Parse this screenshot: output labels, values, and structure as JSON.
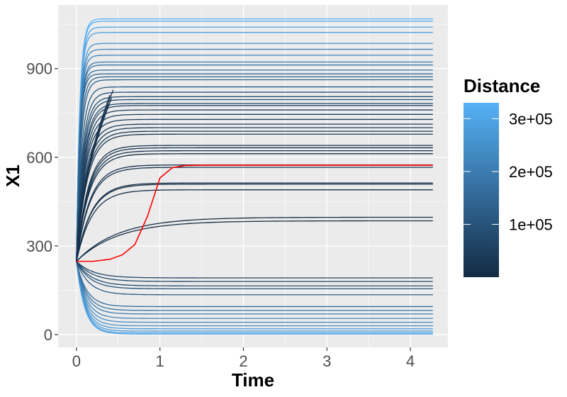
{
  "chart_data": {
    "type": "line",
    "title": "",
    "xlabel": "Time",
    "ylabel": "X1",
    "xlim": [
      -0.22,
      4.45
    ],
    "ylim": [
      -43,
      1115
    ],
    "xticks": [
      0,
      1,
      2,
      3,
      4
    ],
    "xtick_labels": [
      "0",
      "1",
      "2",
      "3",
      "4"
    ],
    "yticks": [
      0,
      300,
      600,
      900
    ],
    "ytick_labels": [
      "0",
      "300",
      "600",
      "900"
    ],
    "grid": true,
    "panel_background": "#ebebeb",
    "legend": {
      "title": "Distance",
      "position": "right",
      "type": "colorbar",
      "range": [
        0,
        330000
      ],
      "breaks": [
        100000,
        200000,
        300000
      ],
      "break_labels": [
        "1e+05",
        "2e+05",
        "3e+05"
      ],
      "low_color": "#132b43",
      "high_color": "#56b1f7"
    },
    "highlight_color": "#ff0000",
    "start": {
      "time": 0,
      "x1": 248
    },
    "series": [
      {
        "final": 1068,
        "distance": 330000
      },
      {
        "final": 1060,
        "distance": 325000
      },
      {
        "final": 1040,
        "distance": 305000
      },
      {
        "final": 1022,
        "distance": 290000
      },
      {
        "final": 985,
        "distance": 250000
      },
      {
        "final": 965,
        "distance": 230000
      },
      {
        "final": 945,
        "distance": 210000
      },
      {
        "final": 922,
        "distance": 190000
      },
      {
        "final": 912,
        "distance": 180000
      },
      {
        "final": 895,
        "distance": 165000
      },
      {
        "final": 882,
        "distance": 150000
      },
      {
        "final": 872,
        "distance": 140000
      },
      {
        "final": 862,
        "distance": 130000
      },
      {
        "final": 838,
        "distance": 115000
      },
      {
        "final": 820,
        "distance": 100000
      },
      {
        "final": 805,
        "distance": 90000
      },
      {
        "final": 795,
        "distance": 82000
      },
      {
        "final": 782,
        "distance": 72000
      },
      {
        "final": 775,
        "distance": 65000
      },
      {
        "final": 760,
        "distance": 58000
      },
      {
        "final": 745,
        "distance": 50000
      },
      {
        "final": 728,
        "distance": 45000
      },
      {
        "final": 712,
        "distance": 40000
      },
      {
        "final": 700,
        "distance": 35000
      },
      {
        "final": 688,
        "distance": 30000
      },
      {
        "final": 678,
        "distance": 26000
      },
      {
        "final": 640,
        "distance": 20000
      },
      {
        "final": 632,
        "distance": 18000
      },
      {
        "final": 622,
        "distance": 16000
      },
      {
        "final": 612,
        "distance": 15000
      },
      {
        "final": 574,
        "distance": 12000
      },
      {
        "final": 566,
        "distance": 11000
      },
      {
        "final": 513,
        "distance": 8000
      },
      {
        "final": 509,
        "distance": 7500
      },
      {
        "final": 490,
        "distance": 7000
      },
      {
        "final": 397,
        "distance": 5000,
        "slow": true
      },
      {
        "final": 385,
        "distance": 4500,
        "slow": true
      },
      {
        "final": 192,
        "distance": 60000
      },
      {
        "final": 180,
        "distance": 70000
      },
      {
        "final": 165,
        "distance": 85000
      },
      {
        "final": 155,
        "distance": 100000
      },
      {
        "final": 135,
        "distance": 120000
      },
      {
        "final": 95,
        "distance": 160000
      },
      {
        "final": 82,
        "distance": 180000
      },
      {
        "final": 70,
        "distance": 200000
      },
      {
        "final": 55,
        "distance": 220000
      },
      {
        "final": 42,
        "distance": 240000
      },
      {
        "final": 30,
        "distance": 255000
      },
      {
        "final": 20,
        "distance": 270000
      },
      {
        "final": 12,
        "distance": 280000
      },
      {
        "final": 6,
        "distance": 290000
      },
      {
        "final": 2,
        "distance": 300000
      }
    ],
    "short_series": [
      {
        "end_time": 0.44,
        "end_value": 828,
        "distance": 20000
      },
      {
        "end_time": 0.4,
        "end_value": 810,
        "distance": 22000
      },
      {
        "end_time": 0.38,
        "end_value": 780,
        "distance": 25000
      },
      {
        "end_time": 0.42,
        "end_value": 800,
        "distance": 18000
      }
    ],
    "highlight": {
      "x": [
        0,
        0.2,
        0.4,
        0.55,
        0.7,
        0.85,
        1.0,
        1.15,
        1.3,
        1.5,
        2.0,
        3.0,
        4.27
      ],
      "y": [
        248,
        248,
        255,
        270,
        305,
        400,
        530,
        565,
        572,
        573,
        573,
        573,
        573
      ]
    }
  }
}
